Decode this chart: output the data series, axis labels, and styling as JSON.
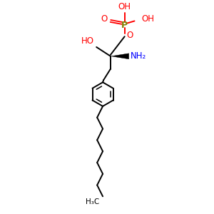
{
  "bg_color": "#ffffff",
  "bond_color": "#000000",
  "phosphorus_color": "#808000",
  "oxygen_color": "#ff0000",
  "nitrogen_color": "#0000ff",
  "figsize": [
    3.0,
    3.0
  ],
  "dpi": 100,
  "labels": {
    "OH_top": "OH",
    "P": "P",
    "OH_right": "OH",
    "O_double": "O",
    "O_ester": "O",
    "HO": "HO",
    "NH2": "NH₂",
    "H3C": "H₃C"
  }
}
